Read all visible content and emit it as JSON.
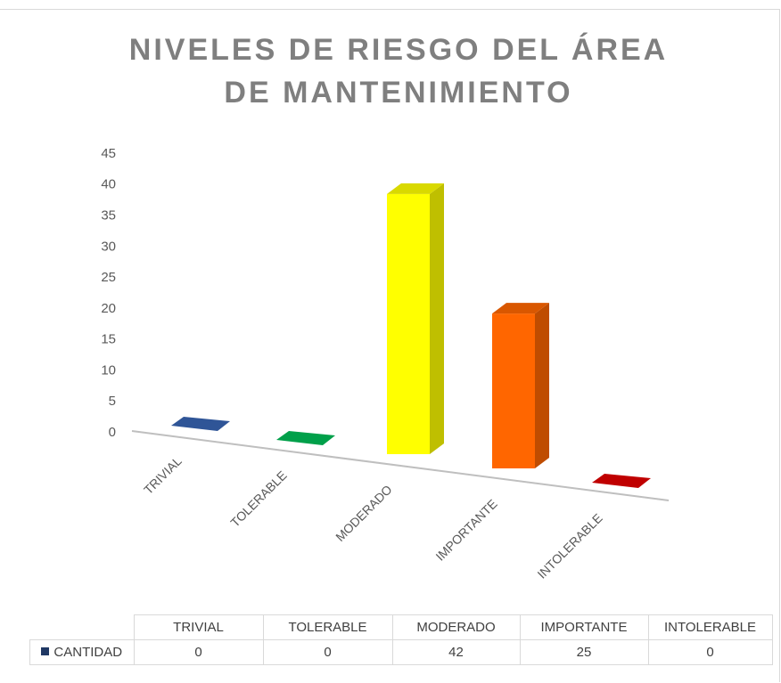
{
  "chart_data": {
    "type": "bar3d",
    "title": "NIVELES DE RIESGO DEL ÁREA DE MANTENIMIENTO",
    "categories": [
      "TRIVIAL",
      "TOLERABLE",
      "MODERADO",
      "IMPORTANTE",
      "INTOLERABLE"
    ],
    "series": [
      {
        "name": "CANTIDAD",
        "color": "#203864",
        "colors": [
          "#2f5597",
          "#00a04a",
          "#ffff00",
          "#ff6600",
          "#c00000"
        ],
        "values": [
          0,
          0,
          42,
          25,
          0
        ]
      }
    ],
    "ylim": [
      0,
      45
    ],
    "yticks": [
      0,
      5,
      10,
      15,
      20,
      25,
      30,
      35,
      40,
      45
    ],
    "grid": false
  }
}
